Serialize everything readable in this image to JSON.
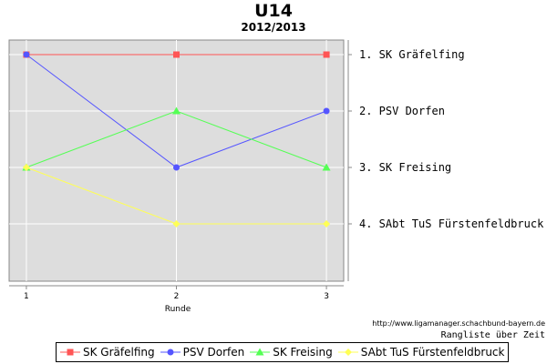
{
  "chart_data": {
    "type": "line",
    "title": "U14",
    "subtitle": "2012/2013",
    "xlabel": "Runde",
    "x": [
      1,
      2,
      3
    ],
    "y_tick_labels": [
      "1. SK Gräfelfing",
      "2. PSV Dorfen",
      "3. SK Freising",
      "4. SAbt TuS Fürstenfeldbruck"
    ],
    "y_axis_position": "right",
    "y_inverted": true,
    "ylim": [
      1,
      5
    ],
    "grid": true,
    "legend_position": "bottom",
    "series": [
      {
        "name": "SK Gräfelfing",
        "values": [
          1,
          1,
          1
        ],
        "color": "#ff5555",
        "marker": "square"
      },
      {
        "name": "PSV Dorfen",
        "values": [
          1,
          3,
          2
        ],
        "color": "#5555ff",
        "marker": "circle"
      },
      {
        "name": "SK Freising",
        "values": [
          3,
          2,
          3
        ],
        "color": "#55ff55",
        "marker": "triangle"
      },
      {
        "name": "SAbt TuS Fürstenfeldbruck",
        "values": [
          3,
          4,
          4
        ],
        "color": "#ffff55",
        "marker": "diamond"
      }
    ],
    "plot_background": "#dddddd",
    "source_url": "http://www.ligamanager.schachbund-bayern.de",
    "caption": "Rangliste über Zeit"
  }
}
